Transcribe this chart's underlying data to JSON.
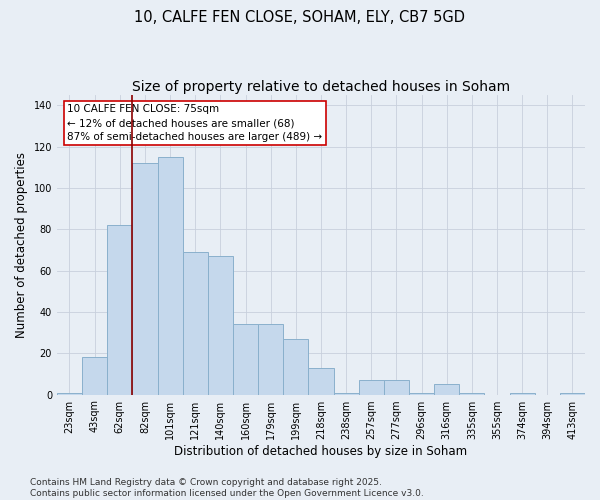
{
  "title": "10, CALFE FEN CLOSE, SOHAM, ELY, CB7 5GD",
  "subtitle": "Size of property relative to detached houses in Soham",
  "xlabel": "Distribution of detached houses by size in Soham",
  "ylabel": "Number of detached properties",
  "bar_color": "#c5d8ec",
  "bar_edge_color": "#8ab0cc",
  "categories": [
    "23sqm",
    "43sqm",
    "62sqm",
    "82sqm",
    "101sqm",
    "121sqm",
    "140sqm",
    "160sqm",
    "179sqm",
    "199sqm",
    "218sqm",
    "238sqm",
    "257sqm",
    "277sqm",
    "296sqm",
    "316sqm",
    "335sqm",
    "355sqm",
    "374sqm",
    "394sqm",
    "413sqm"
  ],
  "values": [
    1,
    18,
    82,
    112,
    115,
    69,
    67,
    34,
    34,
    27,
    13,
    1,
    7,
    7,
    1,
    5,
    1,
    0,
    1,
    0,
    1
  ],
  "ylim": [
    0,
    145
  ],
  "yticks": [
    0,
    20,
    40,
    60,
    80,
    100,
    120,
    140
  ],
  "red_line_index": 3,
  "annotation_text_line1": "10 CALFE FEN CLOSE: 75sqm",
  "annotation_text_line2": "← 12% of detached houses are smaller (68)",
  "annotation_text_line3": "87% of semi-detached houses are larger (489) →",
  "background_color": "#e8eef5",
  "plot_bg_color": "#e8eef5",
  "footer_text": "Contains HM Land Registry data © Crown copyright and database right 2025.\nContains public sector information licensed under the Open Government Licence v3.0.",
  "grid_color": "#c8d0dc",
  "title_fontsize": 10.5,
  "axis_label_fontsize": 8.5,
  "tick_fontsize": 7,
  "footer_fontsize": 6.5,
  "annotation_fontsize": 7.5
}
